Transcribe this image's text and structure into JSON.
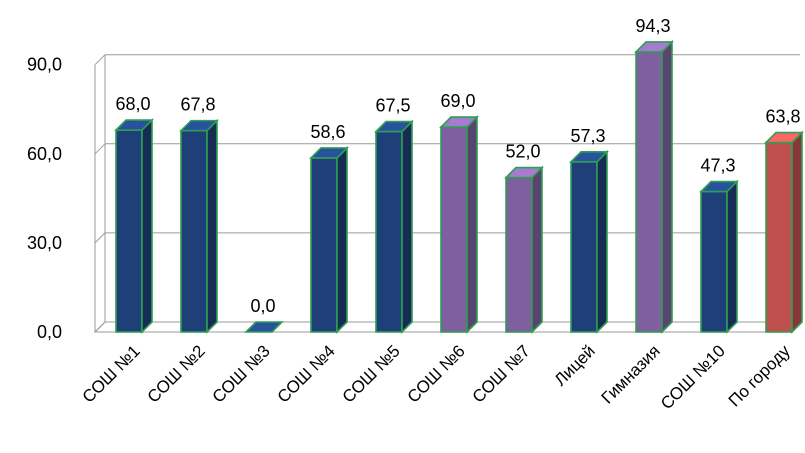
{
  "chart_data": {
    "type": "bar",
    "categories": [
      "СОШ №1",
      "СОШ №2",
      "СОШ №3",
      "СОШ №4",
      "СОШ №5",
      "СОШ №6",
      "СОШ №7",
      "Лицей",
      "Гимназия",
      "СОШ №10",
      "По городу"
    ],
    "values": [
      68.0,
      67.8,
      0.0,
      58.6,
      67.5,
      69.0,
      52.0,
      57.3,
      94.3,
      47.3,
      63.8
    ],
    "value_labels": [
      "68,0",
      "67,8",
      "0,0",
      "58,6",
      "67,5",
      "69,0",
      "52,0",
      "57,3",
      "94,3",
      "47,3",
      "63,8"
    ],
    "bar_colors": [
      "#1f3f78",
      "#1f3f78",
      "#1f3f78",
      "#1f3f78",
      "#1f3f78",
      "#7f5f9f",
      "#7f5f9f",
      "#1f3f78",
      "#7f5f9f",
      "#1f3f78",
      "#c0504d"
    ],
    "y_ticks": [
      "0,0",
      "30,0",
      "60,0",
      "90,0"
    ],
    "y_tick_values": [
      0,
      30,
      60,
      90
    ],
    "ylim": [
      0,
      90
    ],
    "grid": true,
    "title": "",
    "xlabel": "",
    "ylabel": ""
  }
}
